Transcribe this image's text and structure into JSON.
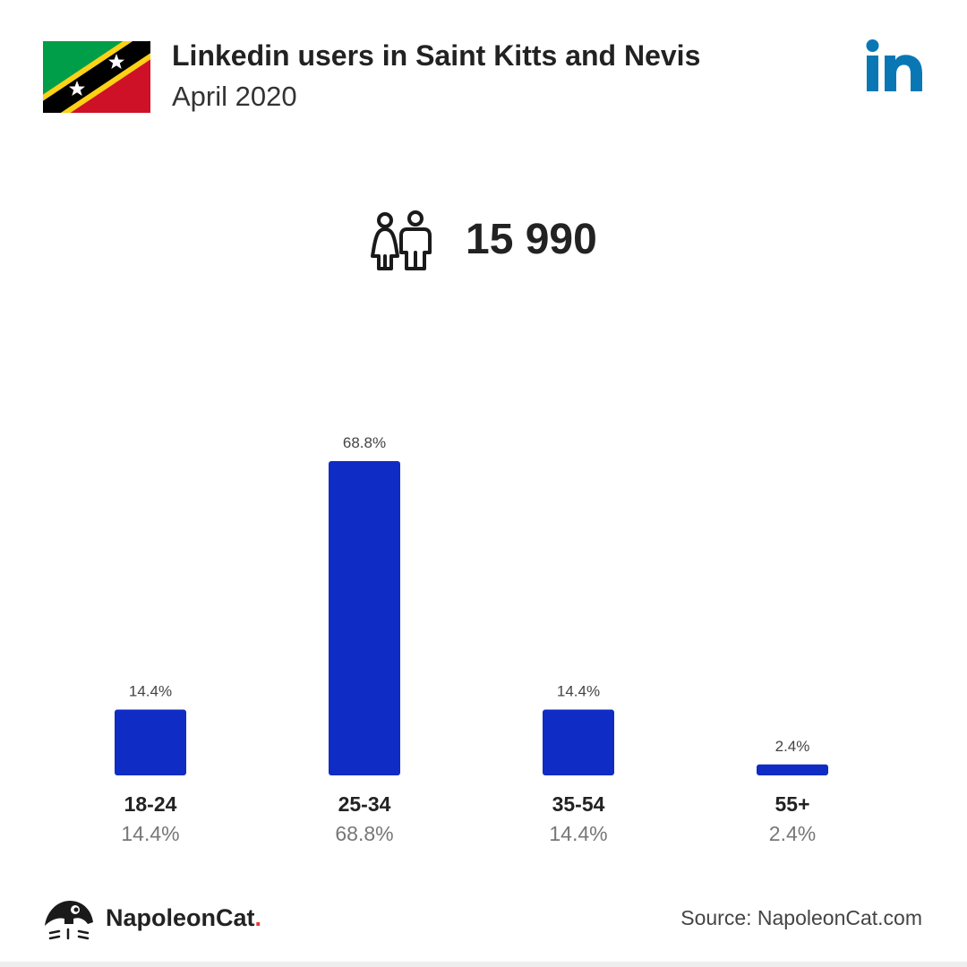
{
  "header": {
    "title": "Linkedin users in Saint Kitts and Nevis",
    "subtitle": "April 2020",
    "flag_icon": "saint-kitts-and-nevis-flag",
    "platform_icon": "linkedin-icon"
  },
  "summary": {
    "icon": "people-icon",
    "total": "15 990"
  },
  "colors": {
    "bar": "#0f2cc4",
    "linkedin": "#0a77b5"
  },
  "chart_data": {
    "type": "bar",
    "categories": [
      "18-24",
      "25-34",
      "35-54",
      "55+"
    ],
    "values": [
      14.4,
      68.8,
      14.4,
      2.4
    ],
    "value_labels": [
      "14.4%",
      "68.8%",
      "14.4%",
      "2.4%"
    ]
  },
  "footer": {
    "brand": "NapoleonCat",
    "brand_dot": ".",
    "source": "Source: NapoleonCat.com"
  }
}
